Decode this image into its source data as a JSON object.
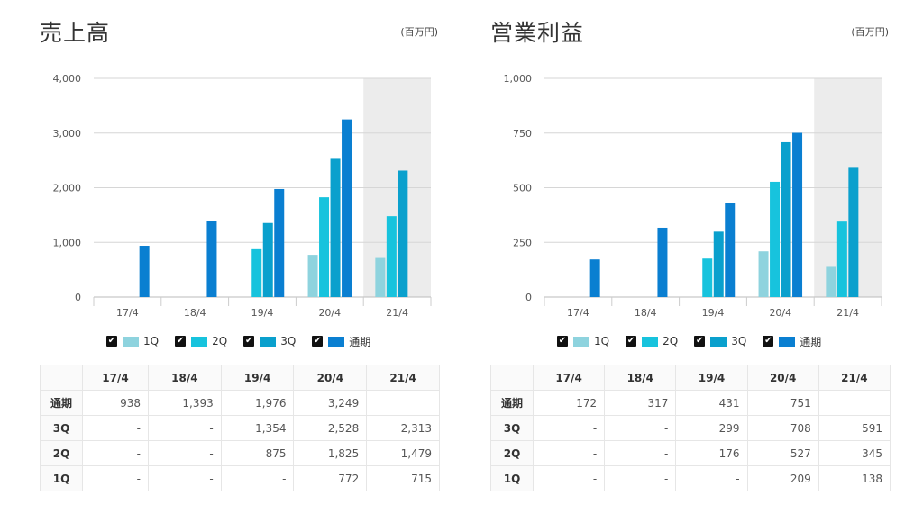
{
  "chart_data": [
    {
      "type": "bar",
      "title": "売上高",
      "unit": "(百万円)",
      "categories": [
        "17/4",
        "18/4",
        "19/4",
        "20/4",
        "21/4"
      ],
      "ylim": [
        0,
        4000
      ],
      "yticks": [
        "0",
        "1,000",
        "2,000",
        "3,000",
        "4,000"
      ],
      "ytick_values": [
        0,
        1000,
        2000,
        3000,
        4000
      ],
      "highlight_category": "21/4",
      "series": [
        {
          "name": "1Q",
          "color": "#8ed3de",
          "values": [
            null,
            null,
            null,
            772,
            715
          ]
        },
        {
          "name": "2Q",
          "color": "#17c3dd",
          "values": [
            null,
            null,
            875,
            1825,
            1479
          ]
        },
        {
          "name": "3Q",
          "color": "#0aa0cd",
          "values": [
            null,
            null,
            1354,
            2528,
            2313
          ]
        },
        {
          "name": "通期",
          "color": "#0a7fd1",
          "values": [
            938,
            1393,
            1976,
            3249,
            null
          ]
        }
      ],
      "table": {
        "headers": [
          "17/4",
          "18/4",
          "19/4",
          "20/4",
          "21/4"
        ],
        "rows": [
          {
            "label": "通期",
            "cells": [
              "938",
              "1,393",
              "1,976",
              "3,249",
              ""
            ]
          },
          {
            "label": "3Q",
            "cells": [
              "-",
              "-",
              "1,354",
              "2,528",
              "2,313"
            ]
          },
          {
            "label": "2Q",
            "cells": [
              "-",
              "-",
              "875",
              "1,825",
              "1,479"
            ]
          },
          {
            "label": "1Q",
            "cells": [
              "-",
              "-",
              "-",
              "772",
              "715"
            ]
          }
        ]
      }
    },
    {
      "type": "bar",
      "title": "営業利益",
      "unit": "(百万円)",
      "categories": [
        "17/4",
        "18/4",
        "19/4",
        "20/4",
        "21/4"
      ],
      "ylim": [
        0,
        1000
      ],
      "yticks": [
        "0",
        "250",
        "500",
        "750",
        "1,000"
      ],
      "ytick_values": [
        0,
        250,
        500,
        750,
        1000
      ],
      "highlight_category": "21/4",
      "series": [
        {
          "name": "1Q",
          "color": "#8ed3de",
          "values": [
            null,
            null,
            null,
            209,
            138
          ]
        },
        {
          "name": "2Q",
          "color": "#17c3dd",
          "values": [
            null,
            null,
            176,
            527,
            345
          ]
        },
        {
          "name": "3Q",
          "color": "#0aa0cd",
          "values": [
            null,
            null,
            299,
            708,
            591
          ]
        },
        {
          "name": "通期",
          "color": "#0a7fd1",
          "values": [
            172,
            317,
            431,
            751,
            null
          ]
        }
      ],
      "table": {
        "headers": [
          "17/4",
          "18/4",
          "19/4",
          "20/4",
          "21/4"
        ],
        "rows": [
          {
            "label": "通期",
            "cells": [
              "172",
              "317",
              "431",
              "751",
              ""
            ]
          },
          {
            "label": "3Q",
            "cells": [
              "-",
              "-",
              "299",
              "708",
              "591"
            ]
          },
          {
            "label": "2Q",
            "cells": [
              "-",
              "-",
              "176",
              "527",
              "345"
            ]
          },
          {
            "label": "1Q",
            "cells": [
              "-",
              "-",
              "-",
              "209",
              "138"
            ]
          }
        ]
      }
    }
  ]
}
